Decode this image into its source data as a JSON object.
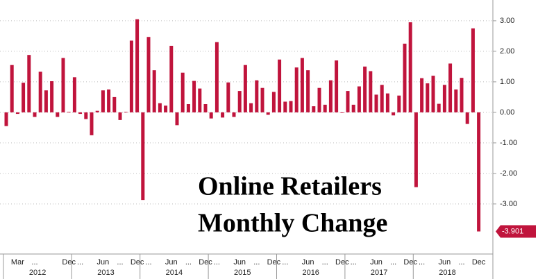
{
  "chart_data": {
    "type": "bar",
    "color": "#c0143c",
    "grid": true,
    "annotation": [
      "Online Retailers",
      "Monthly Change"
    ],
    "categories": [
      null,
      null,
      "Mar",
      null,
      null,
      "...",
      null,
      null,
      null,
      null,
      null,
      "Dec",
      null,
      "...",
      null,
      null,
      null,
      "Jun",
      null,
      null,
      "...",
      null,
      null,
      "Dec",
      null,
      "...",
      null,
      null,
      null,
      "Jun",
      null,
      null,
      "...",
      null,
      null,
      "Dec",
      null,
      "...",
      null,
      null,
      null,
      "Jun",
      null,
      null,
      "...",
      null,
      null,
      "Dec",
      null,
      "...",
      null,
      null,
      null,
      "Jun",
      null,
      null,
      "...",
      null,
      null,
      "Dec",
      null,
      "...",
      null,
      null,
      null,
      "Jun",
      null,
      null,
      "...",
      null,
      null,
      "Dec",
      null,
      "...",
      null,
      null,
      null,
      "Jun",
      null,
      null,
      "...",
      null,
      null,
      "Dec"
    ],
    "years": [
      "2012",
      "2013",
      "2014",
      "2015",
      "2016",
      "2017",
      "2018"
    ],
    "values": [
      -0.45,
      1.55,
      -0.05,
      0.97,
      1.88,
      -0.15,
      1.33,
      0.72,
      1.02,
      -0.15,
      1.78,
      0.02,
      1.15,
      -0.05,
      -0.22,
      -0.75,
      0.05,
      0.72,
      0.75,
      0.5,
      -0.25,
      0.02,
      2.35,
      3.05,
      -2.87,
      2.47,
      1.38,
      0.3,
      0.22,
      2.18,
      -0.42,
      1.3,
      0.27,
      1.03,
      0.78,
      0.27,
      -0.2,
      2.3,
      -0.17,
      0.98,
      -0.15,
      0.7,
      1.55,
      0.3,
      1.05,
      0.8,
      -0.08,
      0.67,
      1.73,
      0.35,
      0.37,
      1.47,
      1.78,
      1.38,
      0.2,
      0.8,
      0.25,
      1.05,
      1.7,
      -0.02,
      0.7,
      0.25,
      0.85,
      1.5,
      1.35,
      0.58,
      0.9,
      0.62,
      -0.1,
      0.55,
      2.25,
      2.95,
      -2.45,
      1.12,
      0.95,
      1.2,
      0.28,
      0.9,
      1.6,
      0.75,
      1.13,
      -0.38,
      2.75,
      -3.901
    ],
    "ylim": [
      -4.64,
      3.68
    ],
    "yticks": [
      {
        "value": 3,
        "label": "3.00"
      },
      {
        "value": 2,
        "label": "2.00"
      },
      {
        "value": 1,
        "label": "1.00"
      },
      {
        "value": 0,
        "label": "0.00"
      },
      {
        "value": -1,
        "label": "-1.00"
      },
      {
        "value": -2,
        "label": "-2.00"
      },
      {
        "value": -3,
        "label": "-3.00"
      }
    ]
  }
}
